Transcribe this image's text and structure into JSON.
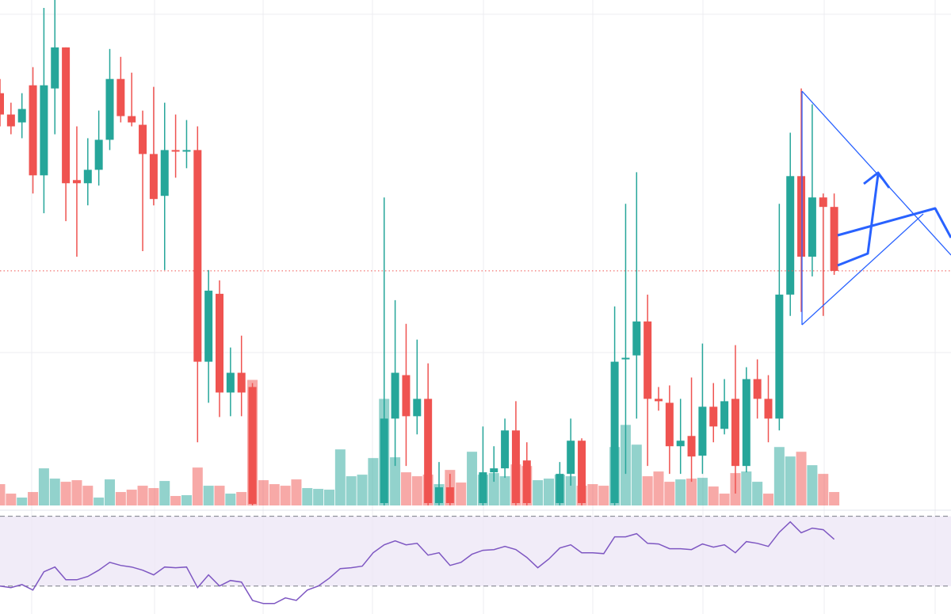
{
  "chart_data": {
    "type": "candlestick",
    "ylim": [
      0,
      640
    ],
    "up_color": "#26a69a",
    "down_color": "#ef5350",
    "open": [
      522,
      495,
      485,
      532,
      418,
      528,
      580,
      412,
      408,
      425,
      463,
      540,
      493,
      482,
      445,
      392,
      450,
      448,
      450,
      182,
      268,
      143,
      168,
      150,
      null,
      null,
      null,
      null,
      null,
      null,
      null,
      null,
      null,
      null,
      null,
      3,
      110,
      165,
      113,
      135,
      3,
      23,
      null,
      null,
      3,
      42,
      47,
      95,
      57,
      null,
      null,
      3,
      40,
      82,
      null,
      null,
      3,
      185,
      190,
      233,
      135,
      130,
      75,
      88,
      63,
      125,
      97,
      135,
      50,
      160,
      135,
      110,
      267,
      417,
      315,
      390,
      378
    ],
    "high": [
      540,
      510,
      522,
      555,
      630,
      640,
      580,
      480,
      465,
      500,
      578,
      568,
      548,
      500,
      530,
      510,
      495,
      488,
      480,
      298,
      285,
      200,
      215,
      155,
      null,
      null,
      null,
      null,
      null,
      null,
      null,
      null,
      null,
      null,
      null,
      390,
      260,
      230,
      210,
      180,
      55,
      40,
      null,
      null,
      100,
      75,
      110,
      132,
      80,
      null,
      null,
      55,
      110,
      85,
      null,
      null,
      252,
      382,
      422,
      267,
      150,
      152,
      135,
      162,
      205,
      155,
      160,
      203,
      175,
      185,
      165,
      382,
      472,
      528,
      508,
      395,
      395
    ],
    "low": [
      480,
      470,
      465,
      395,
      370,
      470,
      360,
      315,
      380,
      405,
      450,
      485,
      480,
      322,
      380,
      298,
      415,
      427,
      80,
      130,
      112,
      113,
      113,
      0,
      null,
      null,
      null,
      null,
      null,
      null,
      null,
      null,
      null,
      null,
      null,
      0,
      50,
      50,
      90,
      0,
      0,
      0,
      null,
      null,
      0,
      30,
      35,
      0,
      0,
      null,
      null,
      0,
      25,
      0,
      null,
      null,
      0,
      40,
      110,
      50,
      120,
      40,
      40,
      30,
      40,
      80,
      90,
      15,
      42,
      110,
      80,
      95,
      240,
      245,
      290,
      240,
      292
    ],
    "close": [
      495,
      480,
      502,
      418,
      532,
      580,
      408,
      408,
      425,
      463,
      540,
      493,
      485,
      445,
      388,
      450,
      448,
      450,
      182,
      272,
      143,
      168,
      143,
      2,
      null,
      null,
      null,
      null,
      null,
      null,
      null,
      null,
      null,
      null,
      null,
      110,
      168,
      113,
      135,
      3,
      23,
      3,
      null,
      null,
      42,
      47,
      95,
      3,
      3,
      null,
      null,
      40,
      82,
      3,
      null,
      null,
      182,
      187,
      233,
      135,
      132,
      75,
      82,
      62,
      125,
      100,
      132,
      50,
      160,
      135,
      110,
      267,
      417,
      315,
      390,
      378,
      297
    ],
    "volume": {
      "ylim": [
        0,
        640
      ],
      "up_color": "#26a69a",
      "down_color": "#ef5350",
      "values": [
        27,
        15,
        10,
        17,
        47,
        34,
        30,
        32,
        25,
        10,
        33,
        17,
        20,
        25,
        22,
        31,
        12,
        13,
        48,
        25,
        25,
        15,
        17,
        159,
        32,
        27,
        25,
        33,
        22,
        21,
        20,
        71,
        37,
        39,
        60,
        135,
        61,
        42,
        37,
        39,
        27,
        45,
        29,
        68,
        39,
        41,
        37,
        52,
        50,
        32,
        34,
        39,
        37,
        25,
        27,
        25,
        74,
        102,
        77,
        37,
        43,
        30,
        33,
        34,
        35,
        24,
        15,
        41,
        43,
        30,
        15,
        74,
        62,
        68,
        51,
        40,
        17
      ],
      "up": [
        false,
        false,
        true,
        false,
        true,
        true,
        false,
        false,
        false,
        true,
        true,
        false,
        false,
        false,
        false,
        true,
        false,
        true,
        false,
        true,
        false,
        true,
        false,
        false,
        false,
        false,
        false,
        false,
        true,
        true,
        true,
        true,
        true,
        true,
        true,
        true,
        true,
        false,
        false,
        false,
        true,
        false,
        false,
        true,
        true,
        true,
        true,
        false,
        false,
        true,
        true,
        true,
        true,
        false,
        false,
        false,
        true,
        true,
        true,
        false,
        false,
        false,
        true,
        false,
        true,
        false,
        false,
        false,
        true,
        true,
        false,
        true,
        true,
        false,
        true,
        false,
        false
      ]
    },
    "rsi": {
      "ylim": [
        14,
        73
      ],
      "levels": [
        30,
        70
      ],
      "color": "#7e57c2",
      "band_color": "#ede7f6",
      "values": [
        30,
        29.1,
        30.9,
        27.7,
        38.2,
        40.9,
        33.6,
        33.6,
        35.5,
        39.1,
        43.6,
        41.8,
        40.9,
        39.1,
        36.4,
        40.9,
        40.5,
        40.9,
        29.1,
        36.4,
        30,
        33.2,
        32.3,
        21.8,
        20,
        20,
        23.2,
        21.8,
        27.7,
        30,
        34.5,
        40,
        40.5,
        41.4,
        49.1,
        53.6,
        55.9,
        53.6,
        54.5,
        47.7,
        49.1,
        41.8,
        43.6,
        48.2,
        50.5,
        50.9,
        52.7,
        50.9,
        46.4,
        40.5,
        45.5,
        51.8,
        53.6,
        49.1,
        49.1,
        48.6,
        58.2,
        58.2,
        60,
        54.5,
        54.1,
        51.4,
        51.4,
        50.9,
        54.1,
        52.3,
        53.6,
        49.1,
        55.5,
        54.5,
        52.7,
        60.9,
        66.8,
        60.5,
        63.2,
        62.3,
        56.8
      ]
    }
  }
}
